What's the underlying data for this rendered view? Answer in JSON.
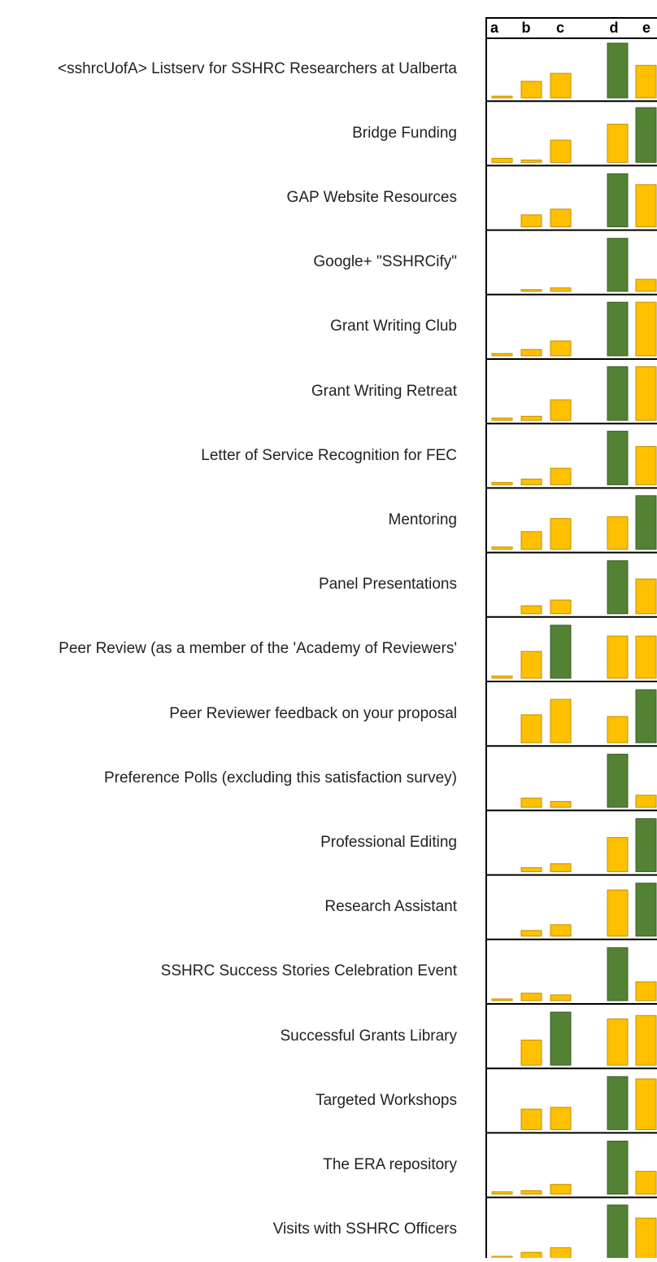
{
  "chart_data": {
    "type": "bar",
    "columns": [
      "a",
      "b",
      "c",
      "d",
      "e"
    ],
    "ylim": [
      0,
      100
    ],
    "color": "#ffc000",
    "highlight_color": "#548235",
    "rows": [
      {
        "label": "<sshrcUofA> Listserv for SSHRC Researchers at Ualberta",
        "values": [
          3,
          29,
          43,
          96,
          57
        ],
        "highlight": 3
      },
      {
        "label": "Bridge Funding",
        "values": [
          7,
          4,
          39,
          67,
          96
        ],
        "highlight": 4
      },
      {
        "label": "GAP Website Resources",
        "values": [
          0,
          21,
          31,
          93,
          74
        ],
        "highlight": 3
      },
      {
        "label": "Google+ \"SSHRCify\"",
        "values": [
          0,
          3,
          6,
          93,
          21
        ],
        "highlight": 3
      },
      {
        "label": "Grant Writing Club",
        "values": [
          4,
          11,
          26,
          94,
          94
        ],
        "highlight": 3
      },
      {
        "label": "Grant Writing Retreat",
        "values": [
          4,
          7,
          36,
          94,
          94
        ],
        "highlight": 3
      },
      {
        "label": "Letter of Service Recognition for FEC",
        "values": [
          4,
          10,
          29,
          94,
          67
        ],
        "highlight": 3
      },
      {
        "label": "Mentoring",
        "values": [
          4,
          31,
          54,
          57,
          94
        ],
        "highlight": 4
      },
      {
        "label": "Panel Presentations",
        "values": [
          0,
          14,
          24,
          93,
          61
        ],
        "highlight": 3
      },
      {
        "label": "Peer Review (as a member of the 'Academy of Reviewers'",
        "values": [
          4,
          47,
          93,
          74,
          74
        ],
        "highlight": 2
      },
      {
        "label": "Peer Reviewer feedback on your proposal",
        "values": [
          0,
          49,
          76,
          46,
          93
        ],
        "highlight": 4
      },
      {
        "label": "Preference Polls (excluding this satisfaction survey)",
        "values": [
          0,
          16,
          10,
          93,
          21
        ],
        "highlight": 3
      },
      {
        "label": "Professional Editing",
        "values": [
          0,
          7,
          14,
          60,
          93
        ],
        "highlight": 4
      },
      {
        "label": "Research Assistant",
        "values": [
          0,
          10,
          20,
          81,
          93
        ],
        "highlight": 4
      },
      {
        "label": "SSHRC Success Stories Celebration Event",
        "values": [
          3,
          13,
          10,
          93,
          33
        ],
        "highlight": 3
      },
      {
        "label": "Successful Grants Library",
        "values": [
          0,
          44,
          93,
          81,
          87
        ],
        "highlight": 2
      },
      {
        "label": "Targeted Workshops",
        "values": [
          0,
          36,
          39,
          93,
          89
        ],
        "highlight": 3
      },
      {
        "label": "The ERA repository",
        "values": [
          4,
          6,
          17,
          93,
          40
        ],
        "highlight": 3
      },
      {
        "label": "Visits with SSHRC Officers",
        "values": [
          4,
          11,
          19,
          94,
          71
        ],
        "highlight": 3
      }
    ]
  }
}
